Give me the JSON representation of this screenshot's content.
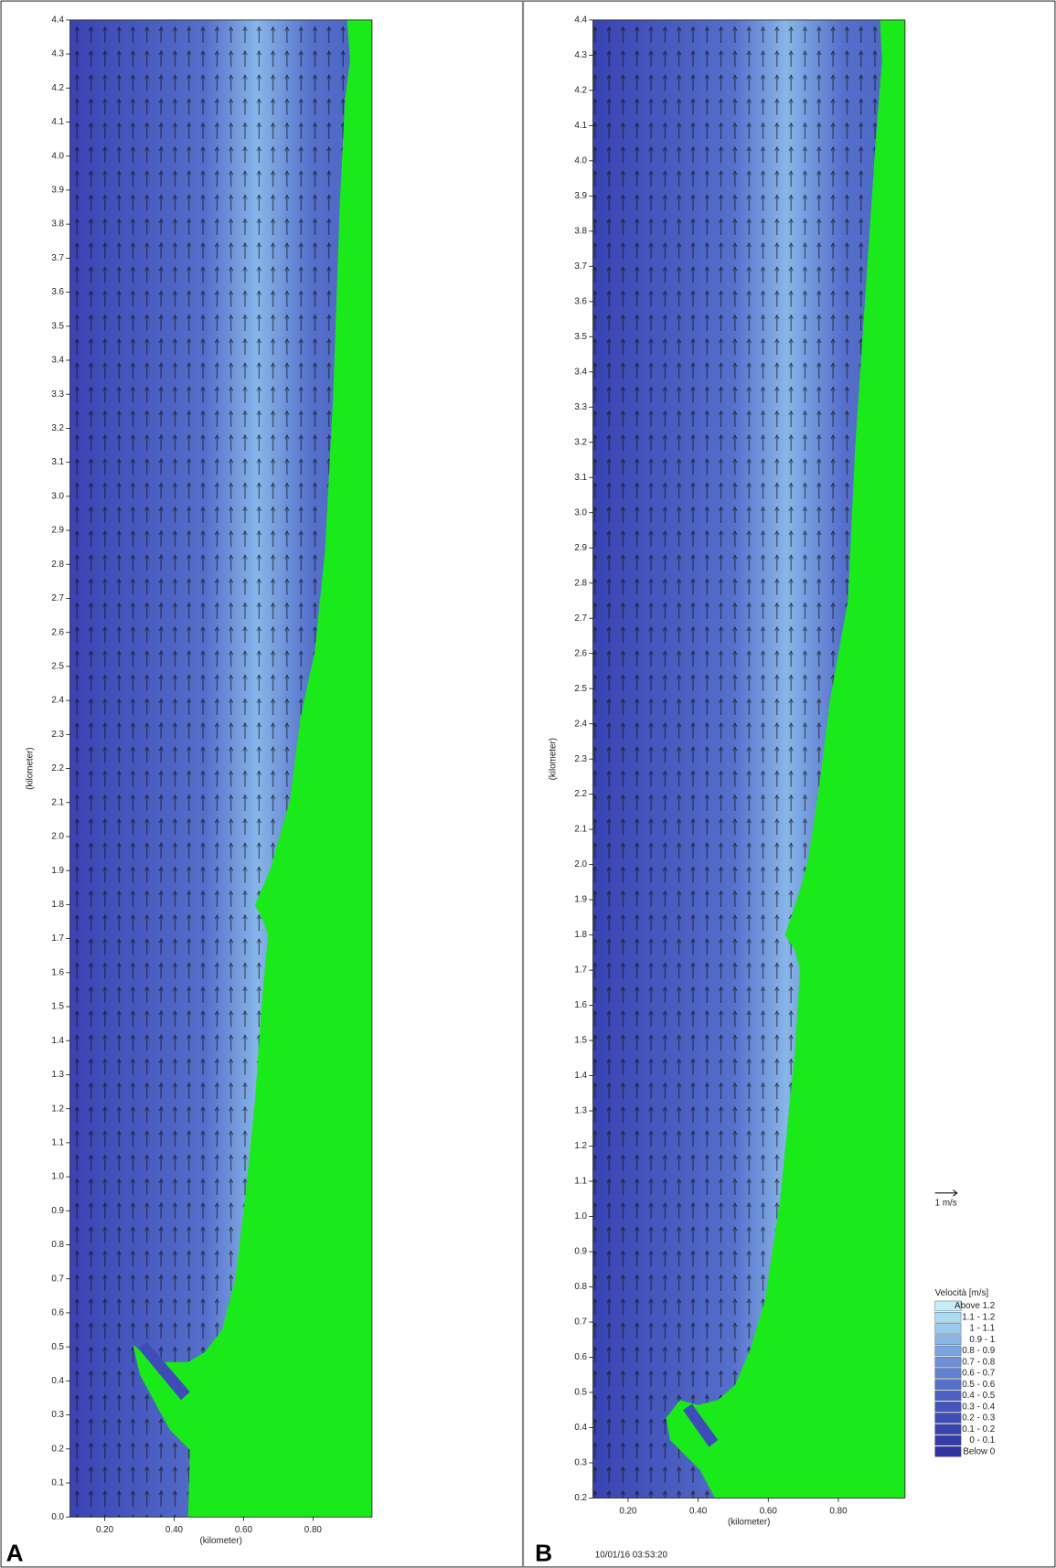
{
  "chart_data": [
    {
      "type": "vector-field",
      "panel_label": "A",
      "xlabel": "(kilometer)",
      "ylabel": "(kilometer)",
      "xlim": [
        0.1,
        0.97
      ],
      "ylim": [
        0,
        4.4
      ],
      "land_color": "#1aea1a",
      "xticks": [
        {
          "value": 0.2,
          "label": "0.20"
        },
        {
          "value": 0.4,
          "label": "0.40"
        },
        {
          "value": 0.6,
          "label": "0.60"
        },
        {
          "value": 0.8,
          "label": "0.80"
        }
      ],
      "yticks": [
        {
          "value": 0,
          "label": "0.0"
        },
        0.1,
        0.2,
        0.3,
        0.4,
        0.5,
        0.6,
        0.7,
        0.8,
        0.9,
        {
          "value": 1,
          "label": "1.0"
        },
        1.1,
        1.2,
        1.3,
        1.4,
        1.5,
        1.6,
        1.7,
        1.8,
        1.9,
        {
          "value": 2,
          "label": "2.0"
        },
        2.1,
        2.2,
        2.3,
        2.4,
        2.5,
        2.6,
        2.7,
        2.8,
        2.9,
        {
          "value": 3,
          "label": "3.0"
        },
        3.1,
        3.2,
        3.3,
        3.4,
        3.5,
        3.6,
        3.7,
        3.8,
        3.9,
        {
          "value": 4,
          "label": "4.0"
        },
        4.1,
        4.2,
        4.3,
        4.4
      ]
    },
    {
      "type": "vector-field",
      "panel_label": "B",
      "xlabel": "(kilometer)",
      "ylabel": "(kilometer)",
      "timestamp": "10/01/16 03:53:20",
      "xlim": [
        0.1,
        0.99
      ],
      "ylim": [
        0.2,
        4.4
      ],
      "land_color": "#1aea1a",
      "xticks": [
        {
          "value": 0.2,
          "label": "0.20"
        },
        {
          "value": 0.4,
          "label": "0.40"
        },
        {
          "value": 0.6,
          "label": "0.60"
        },
        {
          "value": 0.8,
          "label": "0.80"
        }
      ],
      "yticks": [
        0.2,
        0.3,
        0.4,
        0.5,
        0.6,
        0.7,
        0.8,
        0.9,
        {
          "value": 1,
          "label": "1.0"
        },
        1.1,
        1.2,
        1.3,
        1.4,
        1.5,
        1.6,
        1.7,
        1.8,
        1.9,
        {
          "value": 2,
          "label": "2.0"
        },
        2.1,
        2.2,
        2.3,
        2.4,
        2.5,
        2.6,
        2.7,
        2.8,
        2.9,
        {
          "value": 3,
          "label": "3.0"
        },
        3.1,
        3.2,
        3.3,
        3.4,
        3.5,
        3.6,
        3.7,
        3.8,
        3.9,
        {
          "value": 4,
          "label": "4.0"
        },
        4.1,
        4.2,
        4.3,
        4.4
      ],
      "legend": {
        "scale_arrow_label": "1 m/s",
        "title": "Velocità [m/s]",
        "items": [
          {
            "label": "Above 1.2",
            "color": "#c4ecfa"
          },
          {
            "label": "1.1 - 1.2",
            "color": "#acdcf4"
          },
          {
            "label": "1 - 1.1",
            "color": "#98caee"
          },
          {
            "label": "0.9 - 1",
            "color": "#87b6e8"
          },
          {
            "label": "0.8 - 0.9",
            "color": "#7aa3e0"
          },
          {
            "label": "0.7 - 0.8",
            "color": "#6d91d9"
          },
          {
            "label": "0.6 - 0.7",
            "color": "#6080d2"
          },
          {
            "label": "0.5 - 0.6",
            "color": "#5570cb"
          },
          {
            "label": "0.4 - 0.5",
            "color": "#4b62c4"
          },
          {
            "label": "0.3 - 0.4",
            "color": "#4456be"
          },
          {
            "label": "0.2 - 0.3",
            "color": "#3e4cb8"
          },
          {
            "label": "0.1 - 0.2",
            "color": "#3943b2"
          },
          {
            "label": "0 - 0.1",
            "color": "#343bab"
          },
          {
            "label": "Below 0",
            "color": "#2f33a4"
          }
        ]
      }
    }
  ]
}
